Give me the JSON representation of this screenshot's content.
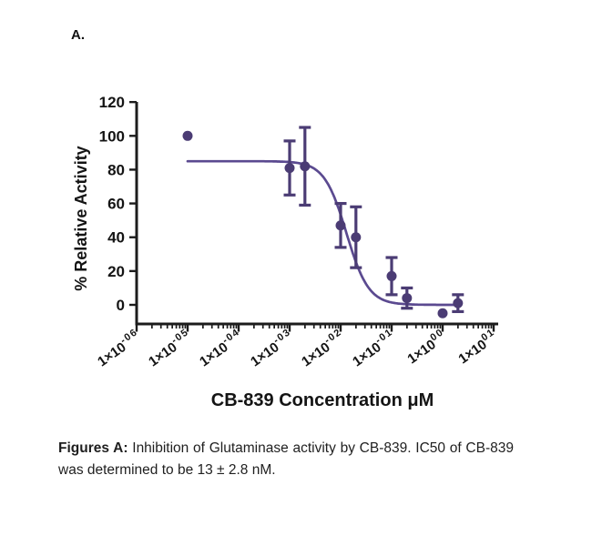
{
  "panel": {
    "label": "A."
  },
  "colors": {
    "marker": "#4B3C74",
    "curve": "#5B4A90",
    "axis": "#1c1c1c",
    "text": "#141414"
  },
  "chart_data": {
    "type": "scatter",
    "title": "",
    "xlabel": "CB-839 Concentration μM",
    "ylabel": "% Relative Activity",
    "x_scale": "log10",
    "x_unit": "μM",
    "x_decade_range": [
      -6,
      1
    ],
    "x_tick_labels": [
      {
        "base": "1×10",
        "exp": "-06"
      },
      {
        "base": "1×10",
        "exp": "-05"
      },
      {
        "base": "1×10",
        "exp": "-04"
      },
      {
        "base": "1×10",
        "exp": "-03"
      },
      {
        "base": "1×10",
        "exp": "-02"
      },
      {
        "base": "1×10",
        "exp": "-01"
      },
      {
        "base": "1×10",
        "exp": "00"
      },
      {
        "base": "1×10",
        "exp": "01"
      }
    ],
    "y_ticks": [
      0,
      20,
      40,
      60,
      80,
      100,
      120
    ],
    "ylim": [
      -10,
      120
    ],
    "grid": false,
    "legend": "none",
    "points": [
      {
        "conc_um": 1e-05,
        "log10_conc": -5.0,
        "pct_activity": 100,
        "error": 0
      },
      {
        "conc_um": 0.001,
        "log10_conc": -3.0,
        "pct_activity": 81,
        "error": 16
      },
      {
        "conc_um": 0.002,
        "log10_conc": -2.7,
        "pct_activity": 82,
        "error": 23
      },
      {
        "conc_um": 0.01,
        "log10_conc": -2.0,
        "pct_activity": 47,
        "error": 13
      },
      {
        "conc_um": 0.02,
        "log10_conc": -1.7,
        "pct_activity": 40,
        "error": 18
      },
      {
        "conc_um": 0.1,
        "log10_conc": -1.0,
        "pct_activity": 17,
        "error": 11
      },
      {
        "conc_um": 0.2,
        "log10_conc": -0.7,
        "pct_activity": 4,
        "error": 6
      },
      {
        "conc_um": 1.0,
        "log10_conc": 0.0,
        "pct_activity": -5,
        "error": 0
      },
      {
        "conc_um": 2.0,
        "log10_conc": 0.3,
        "pct_activity": 1,
        "error": 5
      }
    ],
    "fit": {
      "model": "sigmoidal_dose_response",
      "top_pct": 85,
      "bottom_pct": 0,
      "ic50_um": 0.013,
      "hill_slope": -2,
      "curve_log10_range": [
        -5,
        0.3
      ]
    }
  },
  "caption": {
    "lead": "Figures A:",
    "body": " Inhibition of Glutaminase activity by CB-839. IC50 of CB-839 was determined to be 13 ± 2.8 nM."
  }
}
